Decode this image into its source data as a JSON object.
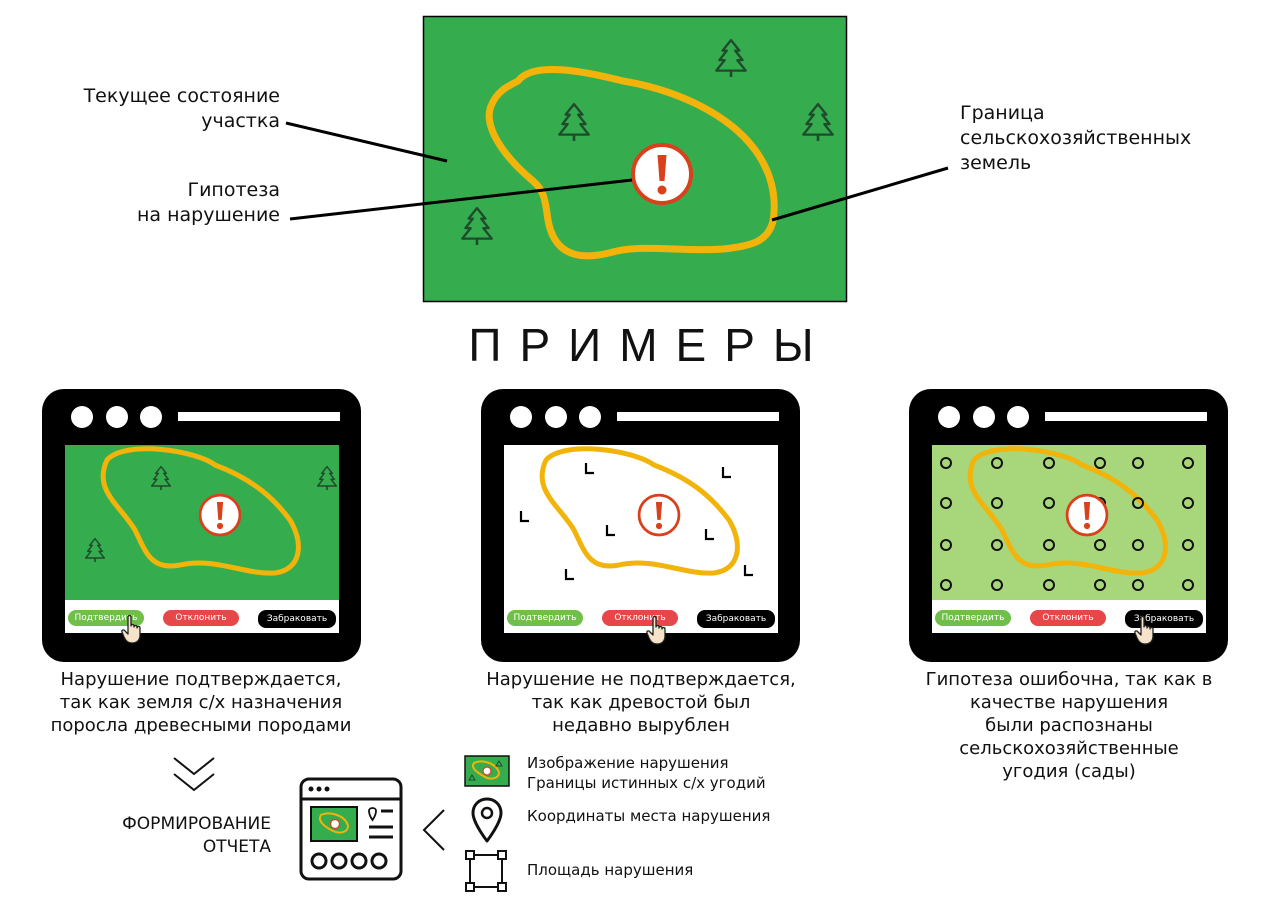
{
  "main": {
    "label_current_state": [
      "Текущее состояние",
      "участка"
    ],
    "label_hypothesis": [
      "Гипотеза",
      "на нарушение"
    ],
    "label_border": [
      "Граница",
      "сельскохозяйственных",
      "земель"
    ]
  },
  "examples_title": "ПРИМЕРЫ",
  "buttons": {
    "confirm": "Подтвердить",
    "reject": "Отклонить",
    "discard": "Забраковать"
  },
  "examples": [
    {
      "caption": [
        "Нарушение подтверждается,",
        "так как земля с/х назначения",
        "поросла древесными породами"
      ]
    },
    {
      "caption": [
        "Нарушение не подтверждается,",
        "так как древостой был",
        "недавно вырублен"
      ]
    },
    {
      "caption": [
        "Гипотеза ошибочна, так как в",
        "качестве нарушения",
        "были распознаны",
        "сельскохозяйственные",
        "угодия (сады)"
      ]
    }
  ],
  "report": {
    "label": [
      "ФОРМИРОВАНИЕ",
      "ОТЧЕТА"
    ],
    "items": [
      [
        "Изображение нарушения",
        "Границы истинных с/х угодий"
      ],
      "Координаты места нарушения",
      "Площадь нарушения"
    ]
  },
  "colors": {
    "field_green": "#35ad4f",
    "light_green": "#a8d67a",
    "border_orange": "#f2b40a",
    "alert_red": "#d9401c",
    "confirm": "#6fbf4a",
    "reject": "#e8474a",
    "discard": "#000000",
    "tree": "#1f4b2c"
  },
  "icons": [
    "tree-icon",
    "alert-icon",
    "stump-icon",
    "shrub-icon",
    "pointer-hand-icon",
    "map-pin-icon",
    "area-frame-icon",
    "report-window-icon",
    "chevron-down-icon",
    "chevron-left-icon"
  ]
}
